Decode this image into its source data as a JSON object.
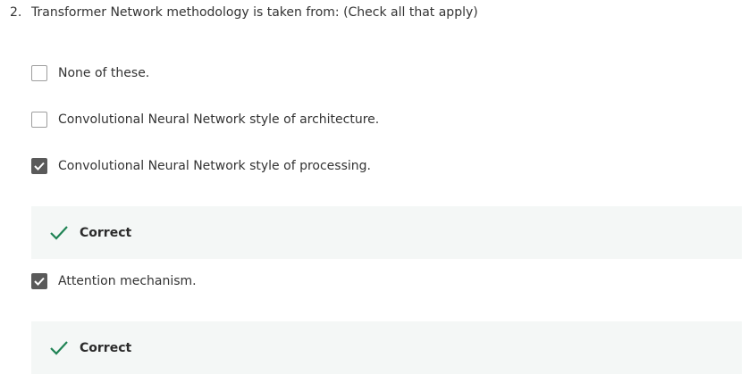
{
  "question": {
    "number": "2.",
    "text": "Transformer Network methodology is taken from: (Check all that apply)"
  },
  "options": [
    {
      "label": "None of these.",
      "checked": false
    },
    {
      "label": "Convolutional Neural Network style of architecture.",
      "checked": false
    },
    {
      "label": "Convolutional Neural Network style of processing.",
      "checked": true
    },
    {
      "label": "Attention mechanism.",
      "checked": true
    }
  ],
  "feedback": [
    {
      "label": "Correct",
      "icon": "checkmark-icon"
    },
    {
      "label": "Correct",
      "icon": "checkmark-icon"
    }
  ],
  "colors": {
    "checked_box": "#5a5a5a",
    "correct_check": "#1f8354",
    "feedback_bg": "#f4f7f6"
  }
}
